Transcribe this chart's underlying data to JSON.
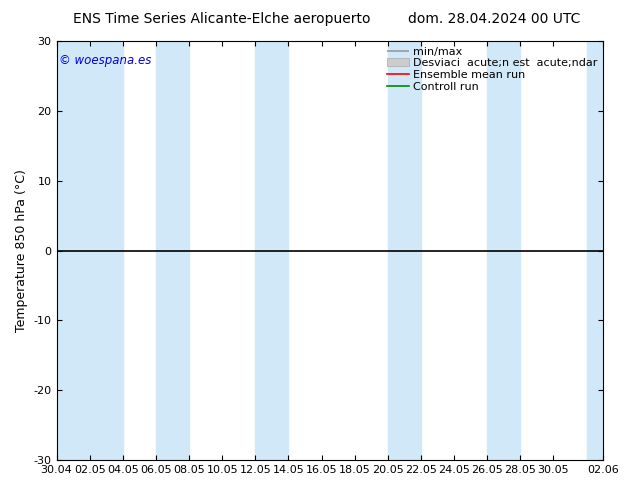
{
  "title_left": "ENS Time Series Alicante-Elche aeropuerto",
  "title_right": "dom. 28.04.2024 00 UTC",
  "ylabel": "Temperature 850 hPa (°C)",
  "ylim": [
    -30,
    30
  ],
  "yticks": [
    -30,
    -20,
    -10,
    0,
    10,
    20,
    30
  ],
  "xtick_labels": [
    "30.04",
    "02.05",
    "04.05",
    "06.05",
    "08.05",
    "10.05",
    "12.05",
    "14.05",
    "16.05",
    "18.05",
    "20.05",
    "22.05",
    "24.05",
    "26.05",
    "28.05",
    "30.05",
    "02.06"
  ],
  "xtick_positions": [
    0,
    2,
    4,
    6,
    8,
    10,
    12,
    14,
    16,
    18,
    20,
    22,
    24,
    26,
    28,
    30,
    33
  ],
  "xlim_start": 0,
  "xlim_end": 33,
  "band_color": "#d0e8f8",
  "band_positions_and_widths": [
    [
      0,
      4
    ],
    [
      6,
      4
    ],
    [
      12,
      2
    ],
    [
      18,
      2
    ],
    [
      24,
      2
    ],
    [
      30,
      3
    ]
  ],
  "watermark": "© woespana.es",
  "watermark_color": "#0000dd",
  "background_color": "#ffffff",
  "plot_bg_color": "#ffffff",
  "hline_y": 0,
  "hline_color": "#000000",
  "title_fontsize": 10,
  "ylabel_fontsize": 9,
  "tick_fontsize": 8,
  "legend_fontsize": 8,
  "minmax_color": "#999999",
  "std_color": "#cccccc",
  "ensemble_color": "#ff0000",
  "control_color": "#008800"
}
